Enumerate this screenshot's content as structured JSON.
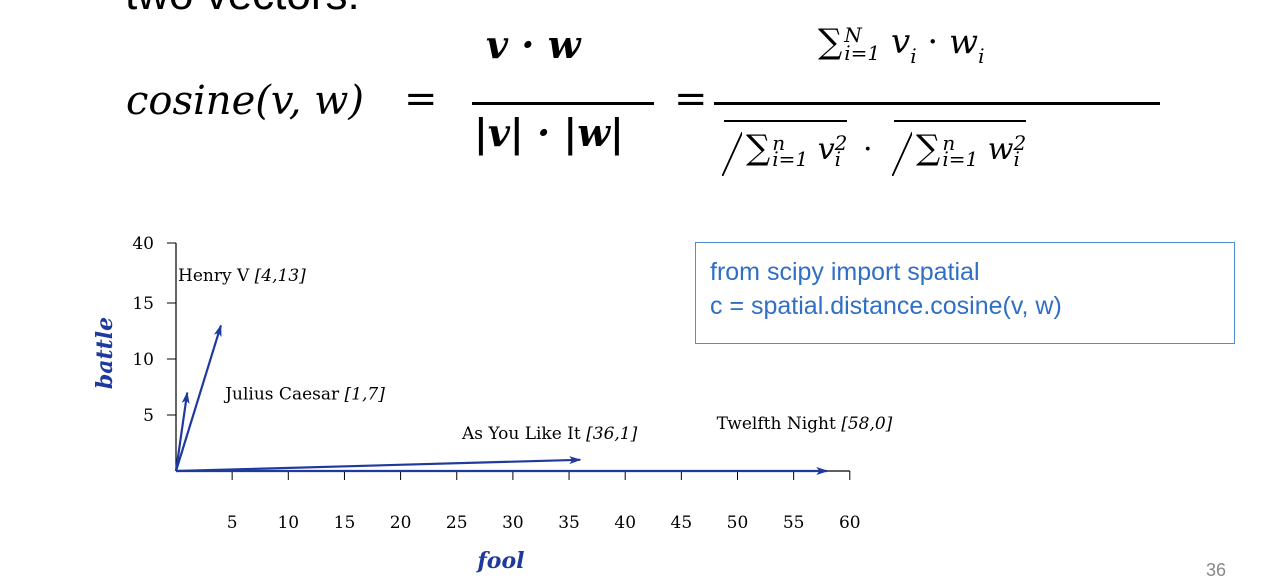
{
  "heading_partial": "two vectors:",
  "formula": {
    "lhs": "cosine(v, w)",
    "equals": "=",
    "frac1_numerator": "v · w",
    "frac1_denominator": "|v| · |w|",
    "frac2_numerator_sum": "∑",
    "frac2_numerator_sub": "i=1",
    "frac2_numerator_sup": "N",
    "frac2_numerator_body": "v",
    "frac2_numerator_body_sub": "i",
    "frac2_numerator_mul": "·",
    "frac2_numerator_body2": "w",
    "frac2_numerator_body2_sub": "i",
    "frac2_den_sum": "∑",
    "frac2_den_sub": "i=1",
    "frac2_den_sup": "n",
    "frac2_den_v": "v",
    "frac2_den_v_sub": "i",
    "frac2_den_v_sup": "2",
    "frac2_den_mul": "·",
    "frac2_den_w": "w",
    "frac2_den_w_sub": "i",
    "frac2_den_w_sup": "2"
  },
  "code_box": {
    "line1": "from scipy import spatial",
    "line2": "c = spatial.distance.cosine(v, w)"
  },
  "slide_number": "36",
  "colors": {
    "vector": "#1f3a9e",
    "axis": "#000000",
    "axis_label": "#1f3a9e",
    "code": "#2f6fc5",
    "code_border": "#4e8fcf"
  },
  "chart_data": {
    "type": "vector",
    "xlabel": "fool",
    "ylabel": "battle",
    "x_ticks": [
      5,
      10,
      15,
      20,
      25,
      30,
      35,
      40,
      45,
      50,
      55,
      60
    ],
    "y_ticks": [
      5,
      10,
      15,
      40
    ],
    "y_axis_broken": true,
    "xlim": [
      0,
      60
    ],
    "vectors": [
      {
        "name": "Henry V",
        "coords": "[4,13]",
        "x": 4,
        "y": 13
      },
      {
        "name": "Julius Caesar",
        "coords": "[1,7]",
        "x": 1,
        "y": 7
      },
      {
        "name": "As You Like It",
        "coords": "[36,1]",
        "x": 36,
        "y": 1
      },
      {
        "name": "Twelfth Night",
        "coords": "[58,0]",
        "x": 58,
        "y": 0
      }
    ]
  }
}
